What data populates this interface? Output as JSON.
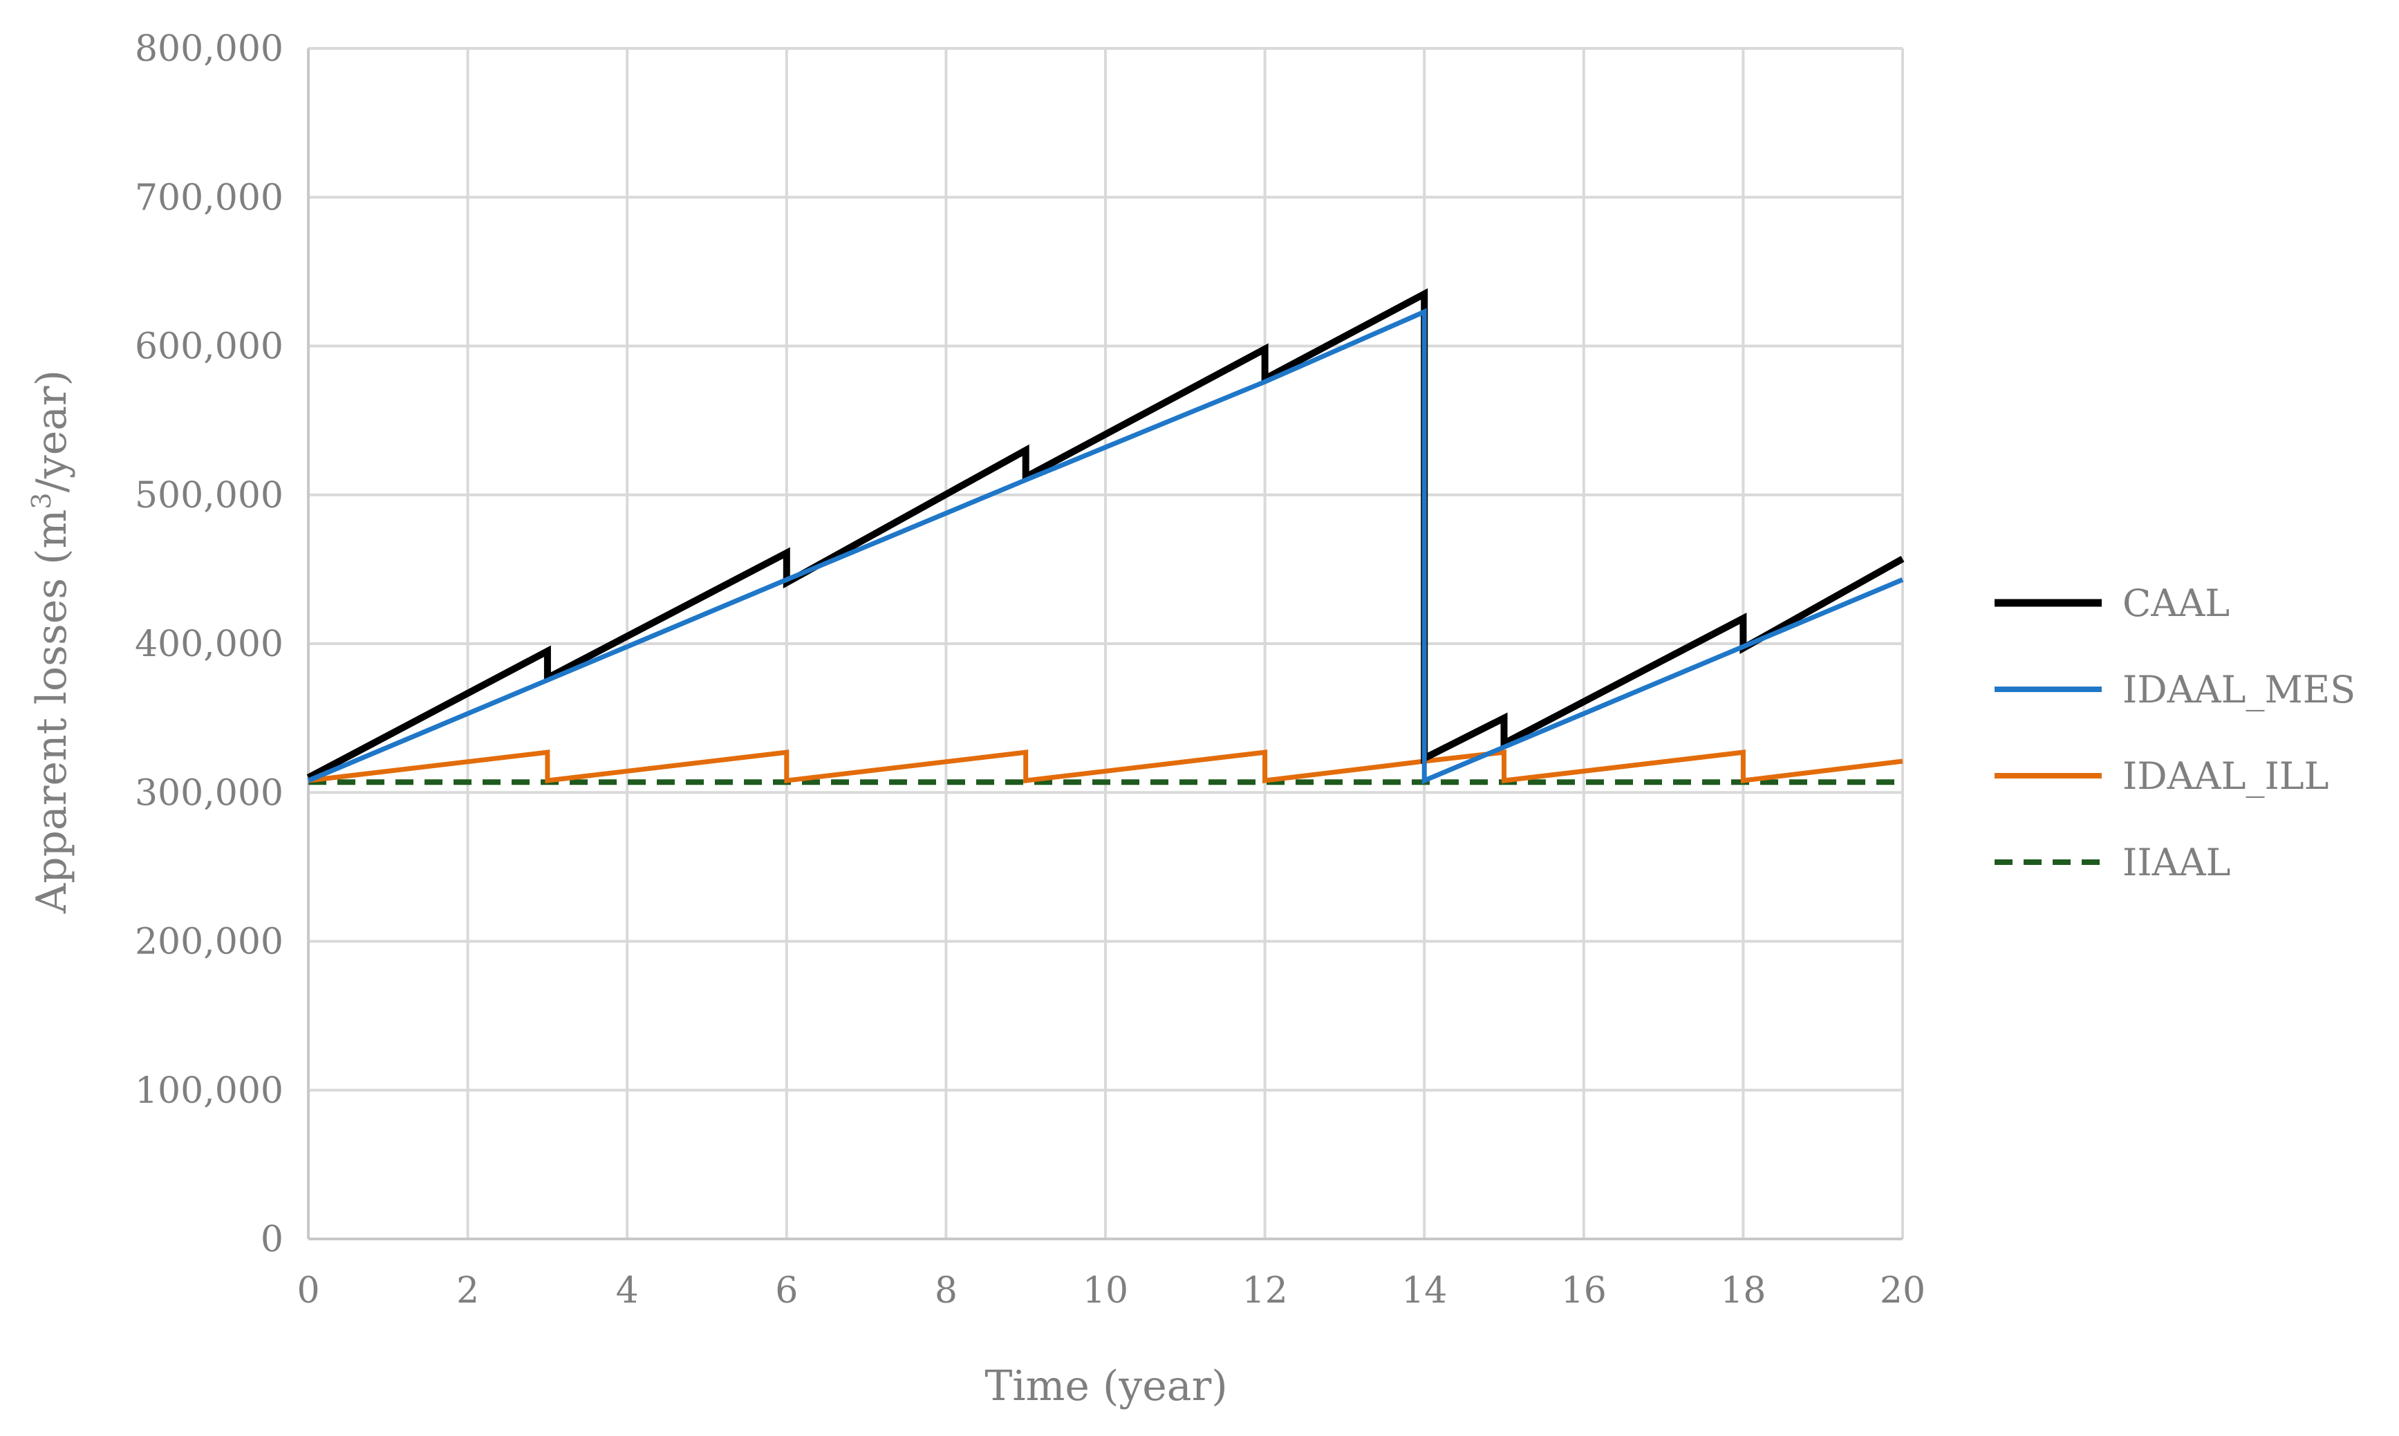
{
  "chart_data": {
    "type": "line",
    "xlabel": "Time (year)",
    "ylabel_main": "Apparent losses (m",
    "ylabel_sup": "3",
    "ylabel_end": "/year)",
    "xlim": [
      0,
      20
    ],
    "ylim": [
      0,
      800000
    ],
    "x_ticks": [
      0,
      2,
      4,
      6,
      8,
      10,
      12,
      14,
      16,
      18,
      20
    ],
    "y_ticks": [
      0,
      100000,
      200000,
      300000,
      400000,
      500000,
      600000,
      700000,
      800000
    ],
    "x_tick_labels": [
      "0",
      "2",
      "4",
      "6",
      "8",
      "10",
      "12",
      "14",
      "16",
      "18",
      "20"
    ],
    "y_tick_labels": [
      "0",
      "100,000",
      "200,000",
      "300,000",
      "400,000",
      "500,000",
      "600,000",
      "700,000",
      "800,000"
    ],
    "grid": true,
    "legend_position": "right",
    "series": [
      {
        "name": "CAAL",
        "color": "#000000",
        "dash": "solid",
        "points": [
          [
            0,
            310000
          ],
          [
            3,
            395000
          ],
          [
            3,
            377000
          ],
          [
            6,
            461000
          ],
          [
            6,
            441000
          ],
          [
            9,
            530000
          ],
          [
            9,
            512000
          ],
          [
            12,
            598000
          ],
          [
            12,
            578000
          ],
          [
            14,
            635000
          ],
          [
            14,
            323000
          ],
          [
            15,
            350000
          ],
          [
            15,
            333000
          ],
          [
            18,
            417000
          ],
          [
            18,
            397000
          ],
          [
            20,
            457000
          ]
        ]
      },
      {
        "name": "IDAAL_MES",
        "color": "#1f77c8",
        "dash": "solid",
        "points": [
          [
            0,
            308000
          ],
          [
            6,
            443000
          ],
          [
            9,
            510000
          ],
          [
            12,
            576000
          ],
          [
            14,
            623000
          ],
          [
            14,
            308000
          ],
          [
            20,
            443000
          ]
        ]
      },
      {
        "name": "IDAAL_ILL",
        "color": "#e36c0a",
        "dash": "solid",
        "points": [
          [
            0,
            308000
          ],
          [
            3,
            327000
          ],
          [
            3,
            308000
          ],
          [
            6,
            327000
          ],
          [
            6,
            308000
          ],
          [
            9,
            327000
          ],
          [
            9,
            308000
          ],
          [
            12,
            327000
          ],
          [
            12,
            308000
          ],
          [
            14,
            321000
          ],
          [
            15,
            327000
          ],
          [
            15,
            308000
          ],
          [
            18,
            327000
          ],
          [
            18,
            308000
          ],
          [
            20,
            321000
          ]
        ]
      },
      {
        "name": "IIAAL",
        "color": "#1e5a1e",
        "dash": "dashed",
        "points": [
          [
            0,
            307000
          ],
          [
            20,
            307000
          ]
        ]
      }
    ]
  }
}
